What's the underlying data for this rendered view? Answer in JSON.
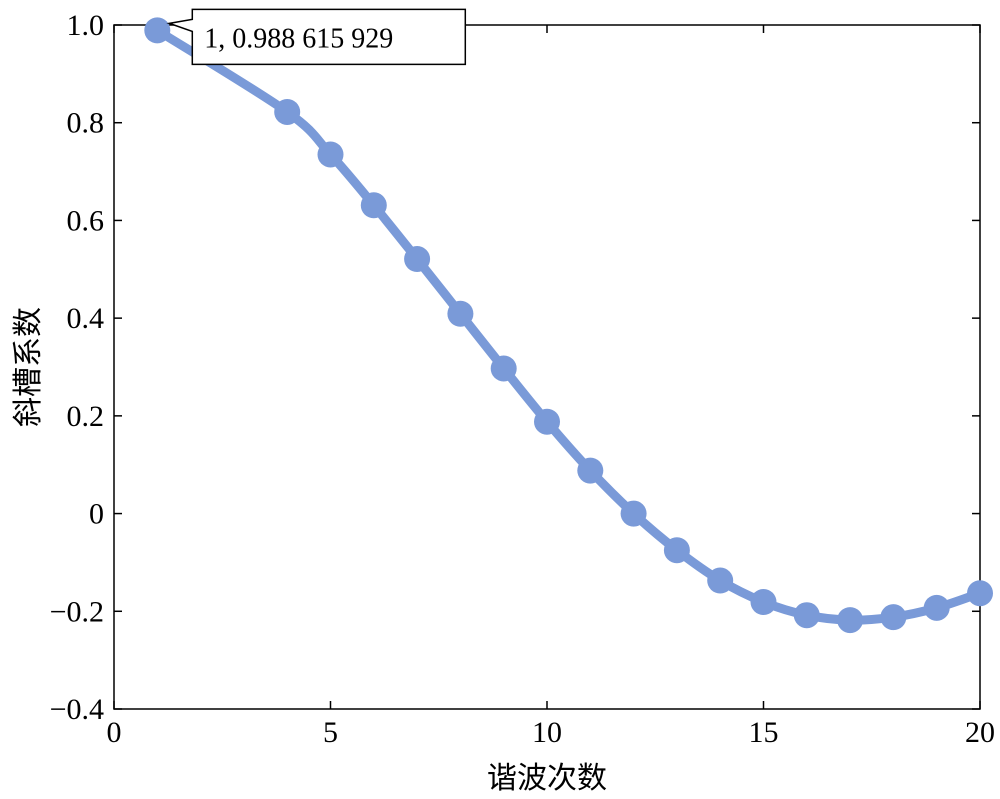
{
  "chart_data": {
    "type": "line",
    "xlabel": "谐波次数",
    "ylabel": "斜槽系数",
    "xlim": [
      0,
      20
    ],
    "ylim": [
      -0.4,
      1.0
    ],
    "x_ticks": [
      0,
      5,
      10,
      15,
      20
    ],
    "x_tick_labels": [
      "0",
      "5",
      "10",
      "15",
      "20"
    ],
    "y_ticks": [
      1.0,
      0.8,
      0.6,
      0.4,
      0.2,
      0,
      -0.2,
      -0.4
    ],
    "y_tick_labels": [
      "1.0",
      "0.8",
      "0.6",
      "0.4",
      "0.2",
      "0",
      "−0.2",
      "−0.4"
    ],
    "grid": false,
    "series": [
      {
        "x": [
          1,
          4,
          5,
          6,
          7,
          8,
          9,
          10,
          11,
          12,
          13,
          14,
          15,
          16,
          17,
          18,
          19,
          20
        ],
        "y": [
          0.989,
          0.822,
          0.735,
          0.631,
          0.521,
          0.409,
          0.297,
          0.188,
          0.088,
          0.0,
          -0.075,
          -0.137,
          -0.181,
          -0.208,
          -0.218,
          -0.212,
          -0.193,
          -0.163
        ],
        "color": "#7a9ad8"
      }
    ],
    "annotations": [
      {
        "text": "1, 0.988 615 929",
        "x": 1,
        "y": 0.989
      }
    ]
  }
}
